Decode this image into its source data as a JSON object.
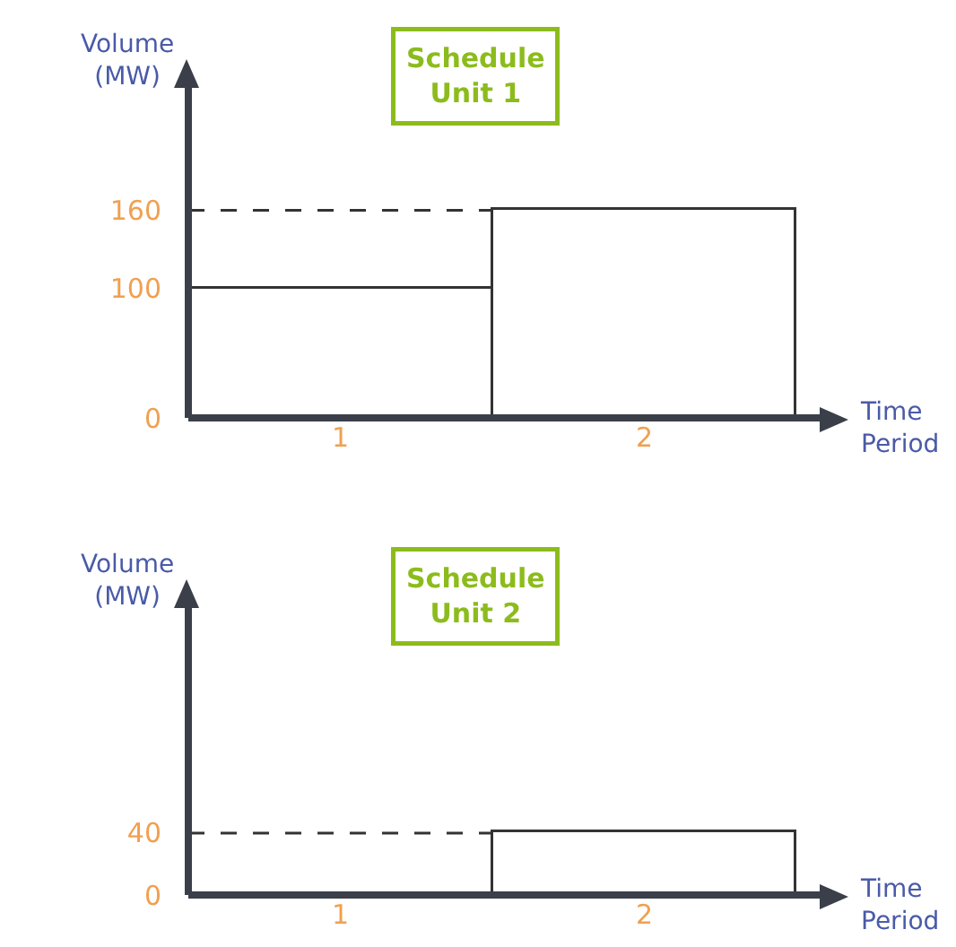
{
  "chart_data": [
    {
      "type": "bar",
      "title": "Schedule Unit 1",
      "xlabel": "Time Period",
      "ylabel": "Volume (MW)",
      "categories": [
        "1",
        "2"
      ],
      "values": [
        100,
        160
      ],
      "color": "#333333",
      "ylim": [
        0,
        260
      ],
      "yticks": [
        0,
        100,
        160
      ],
      "ref_lines": [
        {
          "axis": "y",
          "value": 160,
          "line_style": "dashed",
          "color": "#333333"
        }
      ]
    },
    {
      "type": "bar",
      "title": "Schedule Unit 2",
      "xlabel": "Time Period",
      "ylabel": "Volume (MW)",
      "categories": [
        "1",
        "2"
      ],
      "values": [
        0,
        40
      ],
      "color": "#333333",
      "ylim": [
        0,
        190
      ],
      "yticks": [
        0,
        40
      ],
      "ref_lines": [
        {
          "axis": "y",
          "value": 40,
          "line_style": "dashed",
          "color": "#333333"
        }
      ]
    }
  ]
}
